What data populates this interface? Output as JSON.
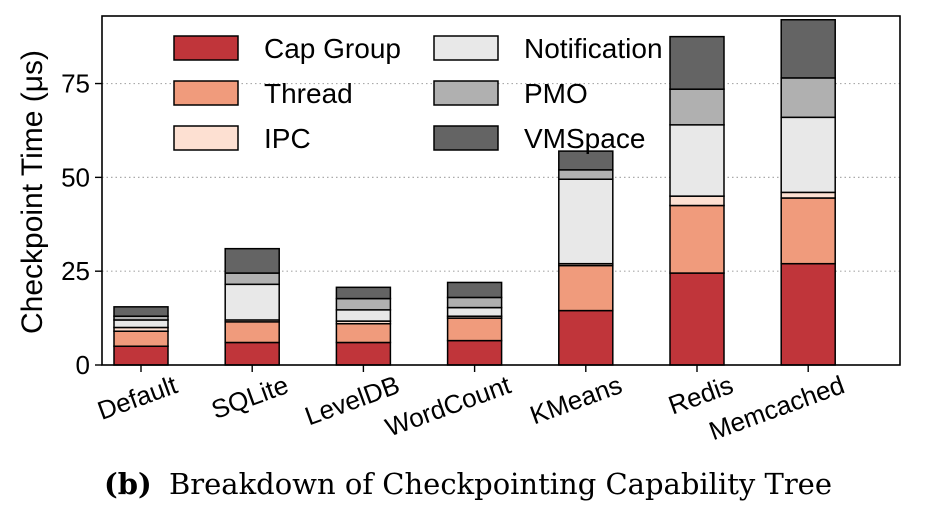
{
  "chart_data": {
    "type": "bar",
    "stacked": true,
    "categories": [
      "Default",
      "SQLite",
      "LevelDB",
      "WordCount",
      "KMeans",
      "Redis",
      "Memcached"
    ],
    "ylabel": "Checkpoint Time (μs)",
    "xlabel": "",
    "ylim": [
      0,
      93
    ],
    "yticks": [
      0,
      25,
      50,
      75
    ],
    "grid": "horizontal-dotted",
    "legend": "top-left",
    "series": [
      {
        "name": "Cap Group",
        "color": "#c0353a",
        "values": [
          5,
          6,
          6,
          6.5,
          14.5,
          24.5,
          27
        ]
      },
      {
        "name": "Thread",
        "color": "#f09b7c",
        "values": [
          4,
          5.5,
          5,
          6,
          12,
          18,
          17.5
        ]
      },
      {
        "name": "IPC",
        "color": "#fde0d2",
        "values": [
          1,
          0.5,
          0.7,
          0.5,
          0.5,
          2.5,
          1.5
        ]
      },
      {
        "name": "Notification",
        "color": "#e8e8e8",
        "values": [
          2,
          9.5,
          3,
          2.3,
          22.5,
          19,
          20
        ]
      },
      {
        "name": "PMO",
        "color": "#b0b0b0",
        "values": [
          1,
          3,
          3,
          2.7,
          2.5,
          9.5,
          10.5
        ]
      },
      {
        "name": "VMSpace",
        "color": "#646464",
        "values": [
          2.5,
          6.5,
          3,
          4,
          5,
          14,
          15.5
        ]
      }
    ]
  },
  "caption": {
    "label": "(b)",
    "text": "Breakdown of Checkpointing Capability Tree"
  }
}
